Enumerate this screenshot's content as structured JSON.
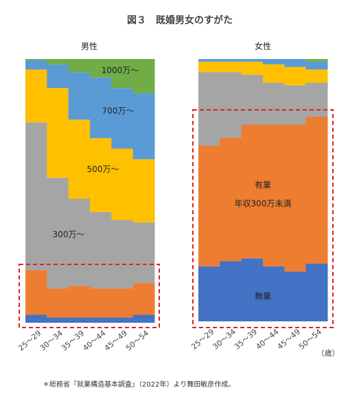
{
  "title": "図３　既婚男女のすがた",
  "x_unit": "（歳）",
  "source": "＊総務省『就業構造基本調査』（2022年）より舞田敏彦作成。",
  "chart_data": [
    {
      "type": "stacked-bar",
      "title": "男性",
      "categories": [
        "25～29",
        "30～34",
        "35～39",
        "40～44",
        "45～49",
        "50～54"
      ],
      "series": [
        {
          "color": "#4472c4",
          "values": [
            3,
            2,
            2,
            2,
            2,
            3
          ]
        },
        {
          "color": "#ed7d31",
          "values": [
            17,
            11,
            12,
            11,
            11,
            12
          ]
        },
        {
          "name": "300万～",
          "color": "#a5a5a5",
          "values": [
            56,
            42,
            33,
            29,
            26,
            23
          ]
        },
        {
          "name": "500万～",
          "color": "#ffc000",
          "values": [
            20,
            34,
            30,
            28,
            27,
            24
          ]
        },
        {
          "name": "700万～",
          "color": "#5b9bd5",
          "values": [
            3.5,
            9,
            18,
            23,
            23,
            25
          ]
        },
        {
          "name": "1000万～",
          "color": "#70ad47",
          "values": [
            0.5,
            2,
            5,
            7,
            11,
            13
          ]
        }
      ]
    },
    {
      "type": "stacked-bar",
      "title": "女性",
      "categories": [
        "25～29",
        "30～34",
        "35～39",
        "40～44",
        "45～49",
        "50～54"
      ],
      "series": [
        {
          "name": [
            "無業"
          ],
          "color": "#4472c4",
          "values": [
            21,
            23,
            24,
            21,
            19,
            22
          ]
        },
        {
          "name": [
            "有業",
            "年収300万未満"
          ],
          "color": "#ed7d31",
          "values": [
            46,
            47,
            51,
            54,
            56,
            56
          ]
        },
        {
          "color": "#a5a5a5",
          "values": [
            28,
            25,
            19,
            16,
            15,
            13
          ]
        },
        {
          "color": "#ffc000",
          "values": [
            4,
            4,
            5,
            7,
            7,
            5
          ]
        },
        {
          "color": "#5b9bd5",
          "values": [
            1,
            1,
            1,
            2,
            3,
            3
          ]
        },
        {
          "color": "#70ad47",
          "values": [
            0,
            0,
            0,
            0,
            0,
            1
          ]
        }
      ]
    }
  ]
}
